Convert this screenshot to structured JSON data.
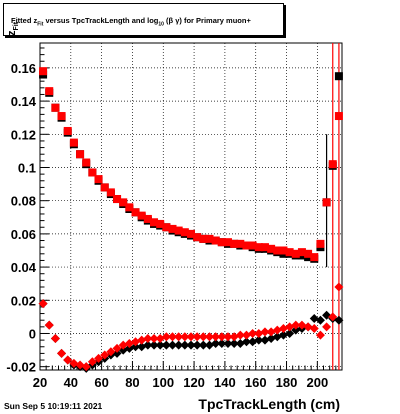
{
  "title": {
    "prefix": "Fitted  z",
    "sub1": "Fit",
    "middle": "  versus TpcTrackLength and log",
    "sub2": "10",
    "suffix": "(β  γ) for Primary muon+"
  },
  "footer": {
    "date": "Sun Sep  5 10:19:11 2021"
  },
  "chart_data": {
    "type": "scatter",
    "xlabel": "TpcTrackLength (cm)",
    "ylabel_main": "z",
    "ylabel_sub": "Fit",
    "xlim": [
      20,
      216
    ],
    "ylim": [
      -0.022,
      0.175
    ],
    "grid": true,
    "xticks": [
      20,
      40,
      60,
      80,
      100,
      120,
      140,
      160,
      180,
      200
    ],
    "yticks": [
      -0.02,
      0,
      0.02,
      0.04,
      0.06,
      0.08,
      0.1,
      0.12,
      0.14,
      0.16
    ],
    "ytick_labels": [
      "-0.02",
      "0",
      "0.02",
      "0.04",
      "0.06",
      "0.08",
      "0.1",
      "0.12",
      "0.14",
      "0.16"
    ],
    "series": [
      {
        "color": "#000000",
        "marker": "square",
        "x": [
          22,
          26,
          30,
          34,
          38,
          42,
          46,
          50,
          54,
          58,
          62,
          66,
          70,
          74,
          78,
          82,
          86,
          90,
          94,
          98,
          102,
          106,
          110,
          114,
          118,
          122,
          126,
          130,
          134,
          138,
          142,
          146,
          150,
          154,
          158,
          162,
          166,
          170,
          174,
          178,
          182,
          186,
          190,
          194,
          198,
          202,
          206,
          210,
          214
        ],
        "y": [
          0.156,
          0.145,
          0.136,
          0.13,
          0.121,
          0.114,
          0.108,
          0.102,
          0.097,
          0.092,
          0.088,
          0.084,
          0.081,
          0.078,
          0.075,
          0.073,
          0.07,
          0.068,
          0.066,
          0.065,
          0.064,
          0.062,
          0.061,
          0.06,
          0.059,
          0.058,
          0.057,
          0.056,
          0.056,
          0.055,
          0.054,
          0.054,
          0.053,
          0.053,
          0.052,
          0.051,
          0.051,
          0.05,
          0.049,
          0.048,
          0.048,
          0.047,
          0.047,
          0.046,
          0.045,
          0.052,
          0.079,
          0.101,
          0.155
        ]
      },
      {
        "color": "#ff0000",
        "marker": "square",
        "x": [
          22,
          26,
          30,
          34,
          38,
          42,
          46,
          50,
          54,
          58,
          62,
          66,
          70,
          74,
          78,
          82,
          86,
          90,
          94,
          98,
          102,
          106,
          110,
          114,
          118,
          122,
          126,
          130,
          134,
          138,
          142,
          146,
          150,
          154,
          158,
          162,
          166,
          170,
          174,
          178,
          182,
          186,
          190,
          194,
          198,
          202,
          206,
          210,
          214
        ],
        "y": [
          0.158,
          0.146,
          0.136,
          0.131,
          0.122,
          0.115,
          0.108,
          0.103,
          0.097,
          0.093,
          0.088,
          0.085,
          0.081,
          0.079,
          0.076,
          0.073,
          0.071,
          0.069,
          0.067,
          0.066,
          0.064,
          0.063,
          0.062,
          0.061,
          0.06,
          0.058,
          0.057,
          0.057,
          0.056,
          0.055,
          0.055,
          0.054,
          0.054,
          0.053,
          0.053,
          0.052,
          0.052,
          0.051,
          0.05,
          0.05,
          0.049,
          0.048,
          0.049,
          0.048,
          0.046,
          0.054,
          0.079,
          0.102,
          0.131
        ]
      },
      {
        "color": "#000000",
        "marker": "diamond",
        "x": [
          22,
          26,
          30,
          34,
          38,
          42,
          46,
          50,
          54,
          58,
          62,
          66,
          70,
          74,
          78,
          82,
          86,
          90,
          94,
          98,
          102,
          106,
          110,
          114,
          118,
          122,
          126,
          130,
          134,
          138,
          142,
          146,
          150,
          154,
          158,
          162,
          166,
          170,
          174,
          178,
          182,
          186,
          190,
          194,
          198,
          202,
          206,
          210,
          214
        ],
        "y": [
          0.018,
          0.005,
          -0.003,
          -0.012,
          -0.016,
          -0.019,
          -0.02,
          -0.021,
          -0.019,
          -0.017,
          -0.015,
          -0.013,
          -0.012,
          -0.01,
          -0.009,
          -0.008,
          -0.008,
          -0.007,
          -0.007,
          -0.007,
          -0.007,
          -0.007,
          -0.007,
          -0.007,
          -0.007,
          -0.007,
          -0.007,
          -0.007,
          -0.006,
          -0.006,
          -0.006,
          -0.006,
          -0.006,
          -0.005,
          -0.005,
          -0.004,
          -0.004,
          -0.003,
          -0.002,
          -0.001,
          0,
          0.002,
          0.003,
          0.004,
          0.009,
          0.008,
          0.011,
          0.009,
          0.008
        ]
      },
      {
        "color": "#ff0000",
        "marker": "diamond",
        "x": [
          22,
          26,
          30,
          34,
          38,
          42,
          46,
          50,
          54,
          58,
          62,
          66,
          70,
          74,
          78,
          82,
          86,
          90,
          94,
          98,
          102,
          106,
          110,
          114,
          118,
          122,
          126,
          130,
          134,
          138,
          142,
          146,
          150,
          154,
          158,
          162,
          166,
          170,
          174,
          178,
          182,
          186,
          190,
          194,
          198,
          202,
          206,
          210,
          214
        ],
        "y": [
          0.018,
          0.005,
          -0.003,
          -0.012,
          -0.016,
          -0.018,
          -0.019,
          -0.02,
          -0.017,
          -0.015,
          -0.013,
          -0.011,
          -0.009,
          -0.007,
          -0.006,
          -0.005,
          -0.004,
          -0.003,
          -0.003,
          -0.003,
          -0.002,
          -0.002,
          -0.002,
          -0.002,
          -0.002,
          -0.002,
          -0.002,
          -0.002,
          -0.002,
          -0.002,
          -0.002,
          -0.002,
          -0.001,
          -0.001,
          0,
          0,
          0.001,
          0.001,
          0.002,
          0.003,
          0.004,
          0.005,
          0.005,
          0.004,
          0.003,
          -0.001,
          0.004,
          0.01,
          0.028
        ]
      }
    ],
    "error_bars": [
      {
        "color": "#ff0000",
        "x": 210,
        "ylo": -0.022,
        "yhi": 0.175
      },
      {
        "color": "#ff0000",
        "x": 214,
        "ylo": -0.022,
        "yhi": 0.175
      },
      {
        "color": "#000000",
        "x": 206,
        "ylo": 0.04,
        "yhi": 0.12
      }
    ]
  }
}
